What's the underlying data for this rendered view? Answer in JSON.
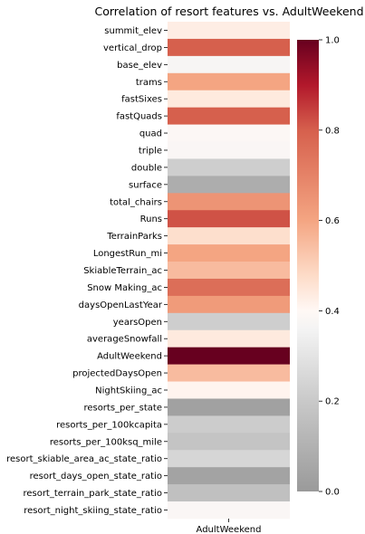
{
  "chart_data": {
    "type": "heatmap",
    "title": "Correlation of resort features vs. AdultWeekend",
    "columns": [
      "AdultWeekend"
    ],
    "rows": [
      "summit_elev",
      "vertical_drop",
      "base_elev",
      "trams",
      "fastSixes",
      "fastQuads",
      "quad",
      "triple",
      "double",
      "surface",
      "total_chairs",
      "Runs",
      "TerrainParks",
      "LongestRun_mi",
      "SkiableTerrain_ac",
      "Snow Making_ac",
      "daysOpenLastYear",
      "yearsOpen",
      "averageSnowfall",
      "AdultWeekend",
      "projectedDaysOpen",
      "NightSkiing_ac",
      "resorts_per_state",
      "resorts_per_100kcapita",
      "resorts_per_100ksq_mile",
      "resort_skiable_area_ac_state_ratio",
      "resort_days_open_state_ratio",
      "resort_terrain_park_state_ratio",
      "resort_night_skiing_state_ratio"
    ],
    "values": [
      0.43,
      0.8,
      0.37,
      0.6,
      0.44,
      0.8,
      0.39,
      0.38,
      0.22,
      0.08,
      0.65,
      0.82,
      0.47,
      0.6,
      0.55,
      0.76,
      0.63,
      0.22,
      0.44,
      1.0,
      0.55,
      0.41,
      0.03,
      0.21,
      0.18,
      0.25,
      0.04,
      0.16,
      0.38
    ],
    "colorbar": {
      "min": 0.0,
      "max": 1.0,
      "ticks": [
        "0.0",
        "0.2",
        "0.4",
        "0.6",
        "0.8",
        "1.0"
      ]
    },
    "colormap": {
      "stops": [
        {
          "v": 0.0,
          "color": "#9a9a9a"
        },
        {
          "v": 0.2,
          "color": "#c9c9c9"
        },
        {
          "v": 0.36,
          "color": "#f4f4f4"
        },
        {
          "v": 0.4,
          "color": "#fff8f5"
        },
        {
          "v": 0.48,
          "color": "#fddbc7"
        },
        {
          "v": 0.6,
          "color": "#f4a582"
        },
        {
          "v": 0.8,
          "color": "#d6604d"
        },
        {
          "v": 0.9,
          "color": "#b2182b"
        },
        {
          "v": 1.0,
          "color": "#67001f"
        }
      ]
    }
  }
}
